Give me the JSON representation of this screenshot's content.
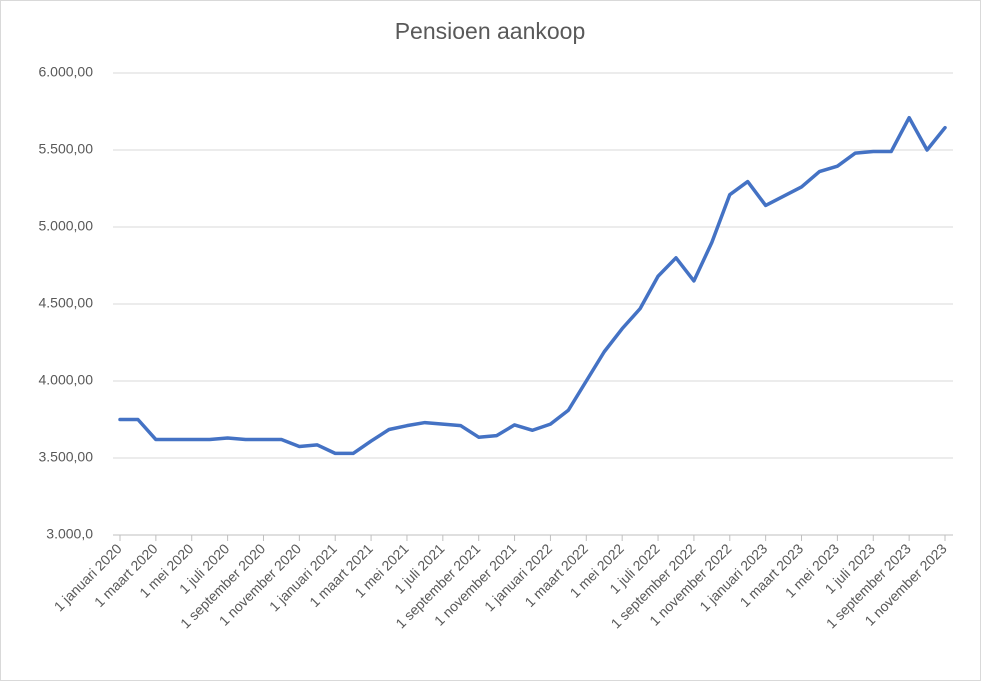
{
  "chart_data": {
    "type": "line",
    "title": "Pensioen aankoop",
    "categories": [
      "1 januari 2020",
      null,
      "1 maart 2020",
      null,
      "1 mei 2020",
      null,
      "1 juli 2020",
      null,
      "1 september 2020",
      null,
      "1 november 2020",
      null,
      "1 januari 2021",
      null,
      "1 maart 2021",
      null,
      "1 mei 2021",
      null,
      "1 juli 2021",
      null,
      "1 september 2021",
      null,
      "1 november 2021",
      null,
      "1 januari 2022",
      null,
      "1 maart 2022",
      null,
      "1 mei 2022",
      null,
      "1 juli 2022",
      null,
      "1 september 2022",
      null,
      "1 november 2022",
      null,
      "1 januari 2023",
      null,
      "1 maart 2023",
      null,
      "1 mei 2023",
      null,
      "1 juli 2023",
      null,
      "1 september 2023",
      null,
      "1 november 2023"
    ],
    "series": [
      {
        "name": "Pensioen aankoop",
        "color": "#4472c4",
        "values": [
          3750,
          3750,
          3620,
          3620,
          3620,
          3620,
          3630,
          3620,
          3620,
          3620,
          3575,
          3585,
          3530,
          3530,
          3610,
          3685,
          3710,
          3730,
          3720,
          3710,
          3635,
          3645,
          3715,
          3680,
          3720,
          3810,
          4000,
          4190,
          4340,
          4470,
          4680,
          4800,
          4650,
          4900,
          5210,
          5295,
          5140,
          5200,
          5260,
          5360,
          5395,
          5480,
          5490,
          5490,
          5710,
          5500,
          5645
        ]
      }
    ],
    "ylim": [
      3000,
      6000
    ],
    "yticks": [
      {
        "value": 3000,
        "label": "3.000,0"
      },
      {
        "value": 3500,
        "label": "3.500,00"
      },
      {
        "value": 4000,
        "label": "4.000,00"
      },
      {
        "value": 4500,
        "label": "4.500,00"
      },
      {
        "value": 5000,
        "label": "5.000,00"
      },
      {
        "value": 5500,
        "label": "5.500,00"
      },
      {
        "value": 6000,
        "label": "6.000,00"
      }
    ],
    "grid": true
  }
}
